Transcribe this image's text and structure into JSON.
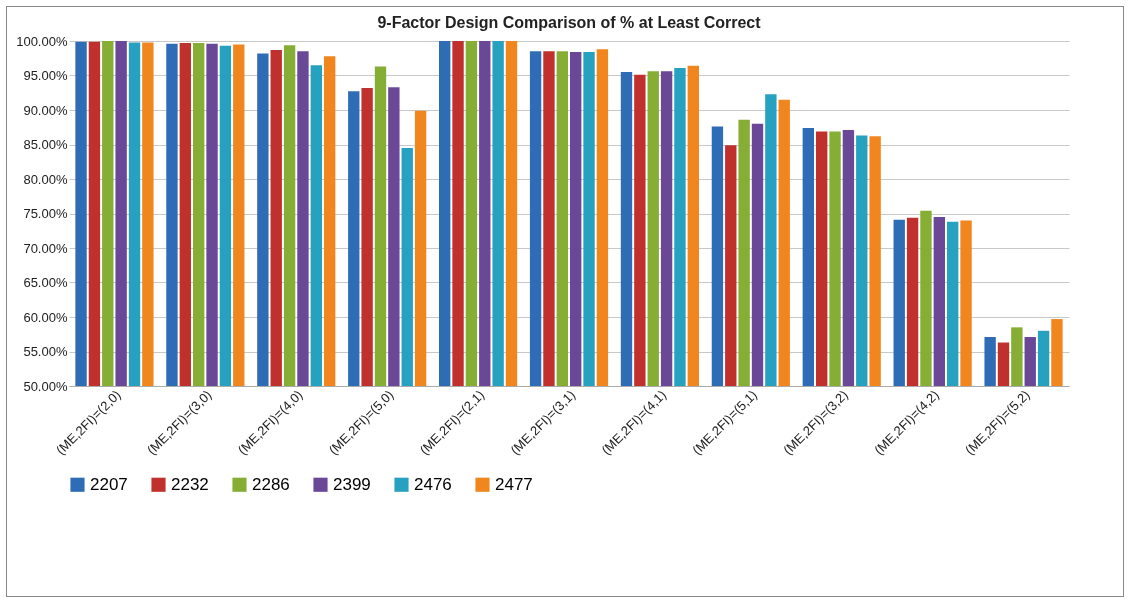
{
  "chart_data": {
    "type": "bar",
    "title": "9-Factor Design Comparison of % at Least Correct",
    "categories": [
      "(ME,2FI)=(2,0)",
      "(ME,2FI)=(3,0)",
      "(ME,2FI)=(4,0)",
      "(ME,2FI)=(5,0)",
      "(ME,2FI)=(2,1)",
      "(ME,2FI)=(3,1)",
      "(ME,2FI)=(4,1)",
      "(ME,2FI)=(5,1)",
      "(ME,2FI)=(3,2)",
      "(ME,2FI)=(4,2)",
      "(ME,2FI)=(5,2)"
    ],
    "series": [
      {
        "name": "2207",
        "color": "#2e6db5",
        "values": [
          99.9,
          99.6,
          98.2,
          92.7,
          100,
          98.5,
          95.5,
          87.6,
          87.4,
          74.1,
          57.1
        ]
      },
      {
        "name": "2232",
        "color": "#c0302c",
        "values": [
          99.9,
          99.7,
          98.7,
          93.2,
          100,
          98.5,
          95.1,
          84.9,
          86.9,
          74.4,
          56.3
        ]
      },
      {
        "name": "2286",
        "color": "#86ad34",
        "values": [
          100,
          99.7,
          99.4,
          96.3,
          100,
          98.5,
          95.6,
          88.6,
          86.9,
          75.4,
          58.5
        ]
      },
      {
        "name": "2399",
        "color": "#6a4797",
        "values": [
          100,
          99.6,
          98.5,
          93.3,
          100,
          98.4,
          95.6,
          88.0,
          87.1,
          74.5,
          57.1
        ]
      },
      {
        "name": "2476",
        "color": "#27a1c0",
        "values": [
          99.8,
          99.3,
          96.5,
          84.5,
          100,
          98.4,
          96.1,
          92.3,
          86.3,
          73.8,
          58.0
        ]
      },
      {
        "name": "2477",
        "color": "#f0861d",
        "values": [
          99.8,
          99.5,
          97.8,
          89.9,
          100,
          98.8,
          96.4,
          91.5,
          86.2,
          74.0,
          59.7
        ]
      }
    ],
    "ylim": [
      50,
      100
    ],
    "yticks": [
      {
        "value": 50,
        "label": "50.00%"
      },
      {
        "value": 55,
        "label": "55.00%"
      },
      {
        "value": 60,
        "label": "60.00%"
      },
      {
        "value": 65,
        "label": "65.00%"
      },
      {
        "value": 70,
        "label": "70.00%"
      },
      {
        "value": 75,
        "label": "75.00%"
      },
      {
        "value": 80,
        "label": "80.00%"
      },
      {
        "value": 85,
        "label": "85.00%"
      },
      {
        "value": 90,
        "label": "90.00%"
      },
      {
        "value": 95,
        "label": "95.00%"
      },
      {
        "value": 100,
        "label": "100.00%"
      }
    ],
    "grid": "y",
    "legend": "bottom"
  }
}
